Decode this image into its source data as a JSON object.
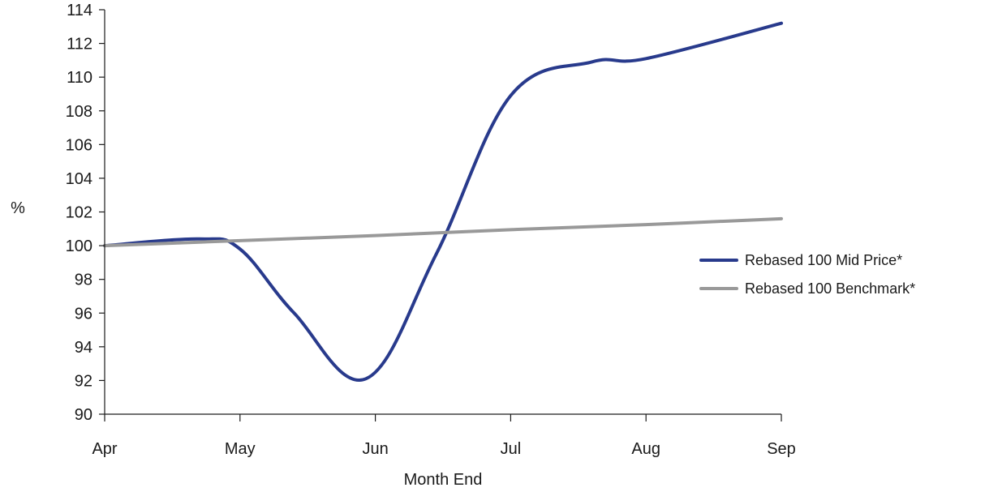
{
  "chart_data": {
    "type": "line",
    "title": "",
    "xlabel": "Month End",
    "ylabel": "%",
    "categories": [
      "Apr",
      "May",
      "Jun",
      "Jul",
      "Aug",
      "Sep"
    ],
    "ylim": [
      90,
      114
    ],
    "yticks": [
      90,
      92,
      94,
      96,
      98,
      100,
      102,
      104,
      106,
      108,
      110,
      112,
      114
    ],
    "grid": false,
    "legend_position": "right",
    "series": [
      {
        "name": "Rebased 100 Mid Price*",
        "color": "#283a8c",
        "points": [
          {
            "x": 0,
            "y": 100.0
          },
          {
            "x": 0.7,
            "y": 100.4
          },
          {
            "x": 1.0,
            "y": 99.8
          },
          {
            "x": 1.4,
            "y": 96.0
          },
          {
            "x": 1.93,
            "y": 92.1
          },
          {
            "x": 2.45,
            "y": 99.5
          },
          {
            "x": 3.0,
            "y": 108.9
          },
          {
            "x": 3.6,
            "y": 110.9
          },
          {
            "x": 4.0,
            "y": 111.1
          },
          {
            "x": 5.0,
            "y": 113.2
          }
        ]
      },
      {
        "name": "Rebased 100 Benchmark*",
        "color": "#999999",
        "points": [
          {
            "x": 0,
            "y": 100.0
          },
          {
            "x": 1,
            "y": 100.3
          },
          {
            "x": 2,
            "y": 100.6
          },
          {
            "x": 3,
            "y": 100.95
          },
          {
            "x": 4,
            "y": 101.25
          },
          {
            "x": 5,
            "y": 101.6
          }
        ]
      }
    ]
  }
}
